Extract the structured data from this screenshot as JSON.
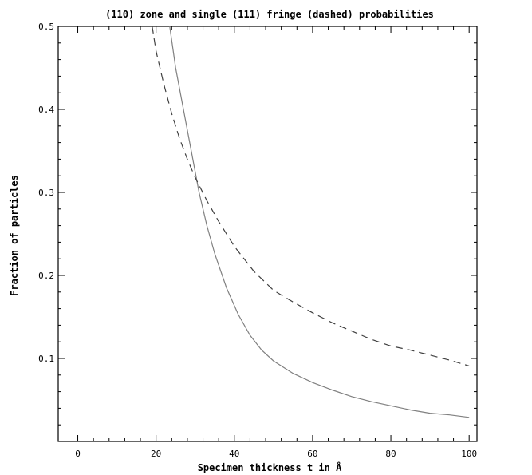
{
  "chart_data": {
    "type": "line",
    "title": "(110) zone and single (111) fringe (dashed) probabilities",
    "xlabel": "Specimen thickness t in Å",
    "ylabel": "Fraction of particles",
    "xlim": [
      -5,
      102
    ],
    "ylim": [
      0,
      0.5
    ],
    "x_ticks": [
      0,
      20,
      40,
      60,
      80,
      100
    ],
    "y_ticks": [
      0.1,
      0.2,
      0.3,
      0.4,
      0.5
    ],
    "x_tick_labels": [
      "0",
      "20",
      "40",
      "60",
      "80",
      "100"
    ],
    "y_tick_labels": [
      "0.1",
      "0.2",
      "0.3",
      "0.4",
      "0.5"
    ],
    "grid": false,
    "series": [
      {
        "style": "solid",
        "color": "#808080",
        "x": [
          23.5,
          25,
          27,
          29,
          31,
          33,
          35,
          38,
          41,
          44,
          47,
          50,
          55,
          60,
          65,
          70,
          75,
          80,
          85,
          90,
          95,
          100
        ],
        "y": [
          0.5,
          0.45,
          0.4,
          0.35,
          0.3,
          0.26,
          0.226,
          0.185,
          0.153,
          0.128,
          0.11,
          0.097,
          0.082,
          0.071,
          0.062,
          0.054,
          0.048,
          0.043,
          0.038,
          0.034,
          0.032,
          0.029
        ]
      },
      {
        "style": "dashed",
        "color": "#404040",
        "x": [
          19,
          20,
          22,
          24,
          26,
          28,
          30,
          33,
          36,
          40,
          45,
          50,
          55,
          60,
          65,
          70,
          75,
          80,
          85,
          90,
          95,
          100
        ],
        "y": [
          0.5,
          0.47,
          0.43,
          0.395,
          0.365,
          0.34,
          0.318,
          0.29,
          0.265,
          0.235,
          0.205,
          0.182,
          0.168,
          0.155,
          0.143,
          0.133,
          0.123,
          0.115,
          0.11,
          0.104,
          0.098,
          0.091
        ]
      }
    ]
  }
}
